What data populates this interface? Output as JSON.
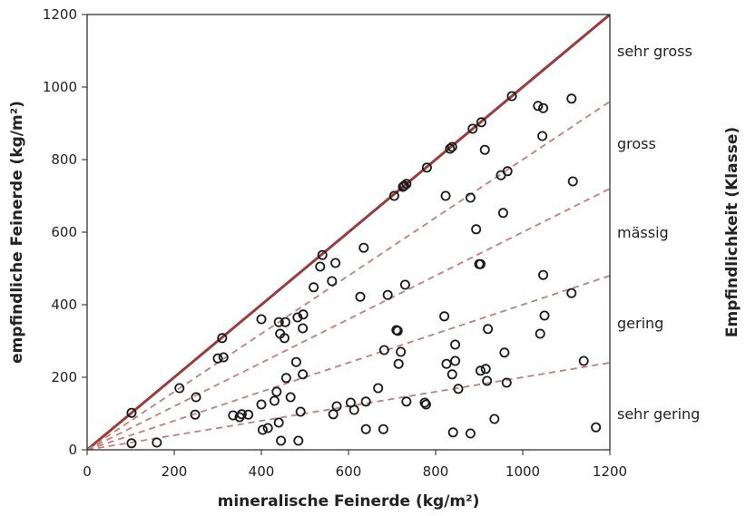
{
  "chart_data": {
    "type": "scatter",
    "xlabel": "mineralische Feinerde (kg/m²)",
    "ylabel": "empfindliche Feinerde (kg/m²)",
    "y2label": "Empfindlichkeit (Klasse)",
    "xlim": [
      0,
      1200
    ],
    "ylim": [
      0,
      1200
    ],
    "xticks": [
      "0",
      "200",
      "400",
      "600",
      "800",
      "1000",
      "1200"
    ],
    "yticks": [
      "0",
      "200",
      "400",
      "600",
      "800",
      "1000",
      "1200"
    ],
    "grid": false,
    "colors": {
      "points": "#1a1a1a",
      "line1": "#9b3a3a",
      "dashed": "#c47d78"
    },
    "reference_lines": [
      {
        "slope": 1.0,
        "style": "solid"
      },
      {
        "slope": 0.8,
        "style": "dashed"
      },
      {
        "slope": 0.6,
        "style": "dashed"
      },
      {
        "slope": 0.4,
        "style": "dashed"
      },
      {
        "slope": 0.2,
        "style": "dashed"
      }
    ],
    "classes": [
      {
        "label": "sehr gross",
        "y": 1100
      },
      {
        "label": "gross",
        "y": 845
      },
      {
        "label": "mässig",
        "y": 600
      },
      {
        "label": "gering",
        "y": 350
      },
      {
        "label": "sehr gering",
        "y": 100
      }
    ],
    "points": [
      [
        102,
        102
      ],
      [
        102,
        18
      ],
      [
        160,
        20
      ],
      [
        212,
        170
      ],
      [
        250,
        145
      ],
      [
        248,
        97
      ],
      [
        300,
        252
      ],
      [
        310,
        308
      ],
      [
        313,
        255
      ],
      [
        335,
        95
      ],
      [
        350,
        90
      ],
      [
        355,
        98
      ],
      [
        370,
        97
      ],
      [
        400,
        360
      ],
      [
        400,
        125
      ],
      [
        403,
        55
      ],
      [
        415,
        60
      ],
      [
        430,
        135
      ],
      [
        435,
        160
      ],
      [
        440,
        352
      ],
      [
        440,
        75
      ],
      [
        443,
        320
      ],
      [
        445,
        25
      ],
      [
        453,
        308
      ],
      [
        455,
        352
      ],
      [
        457,
        198
      ],
      [
        467,
        145
      ],
      [
        480,
        242
      ],
      [
        483,
        365
      ],
      [
        485,
        25
      ],
      [
        490,
        105
      ],
      [
        495,
        208
      ],
      [
        495,
        335
      ],
      [
        496,
        373
      ],
      [
        520,
        448
      ],
      [
        535,
        505
      ],
      [
        540,
        537
      ],
      [
        562,
        465
      ],
      [
        565,
        98
      ],
      [
        570,
        515
      ],
      [
        573,
        120
      ],
      [
        605,
        130
      ],
      [
        613,
        110
      ],
      [
        627,
        422
      ],
      [
        635,
        557
      ],
      [
        640,
        133
      ],
      [
        640,
        57
      ],
      [
        668,
        170
      ],
      [
        680,
        57
      ],
      [
        682,
        275
      ],
      [
        690,
        427
      ],
      [
        705,
        700
      ],
      [
        710,
        330
      ],
      [
        713,
        328
      ],
      [
        715,
        237
      ],
      [
        720,
        270
      ],
      [
        725,
        725
      ],
      [
        728,
        728
      ],
      [
        730,
        455
      ],
      [
        733,
        733
      ],
      [
        733,
        133
      ],
      [
        775,
        130
      ],
      [
        778,
        125
      ],
      [
        780,
        778
      ],
      [
        820,
        368
      ],
      [
        823,
        700
      ],
      [
        825,
        237
      ],
      [
        833,
        830
      ],
      [
        838,
        835
      ],
      [
        838,
        208
      ],
      [
        840,
        48
      ],
      [
        845,
        245
      ],
      [
        845,
        290
      ],
      [
        852,
        168
      ],
      [
        880,
        45
      ],
      [
        880,
        695
      ],
      [
        885,
        885
      ],
      [
        893,
        608
      ],
      [
        900,
        512
      ],
      [
        903,
        512
      ],
      [
        903,
        218
      ],
      [
        905,
        903
      ],
      [
        913,
        827
      ],
      [
        915,
        223
      ],
      [
        918,
        190
      ],
      [
        920,
        333
      ],
      [
        935,
        85
      ],
      [
        950,
        757
      ],
      [
        955,
        653
      ],
      [
        958,
        268
      ],
      [
        963,
        185
      ],
      [
        965,
        768
      ],
      [
        975,
        975
      ],
      [
        1035,
        948
      ],
      [
        1040,
        320
      ],
      [
        1045,
        865
      ],
      [
        1047,
        942
      ],
      [
        1047,
        482
      ],
      [
        1050,
        370
      ],
      [
        1112,
        968
      ],
      [
        1112,
        432
      ],
      [
        1115,
        740
      ],
      [
        1140,
        245
      ],
      [
        1168,
        62
      ]
    ]
  }
}
